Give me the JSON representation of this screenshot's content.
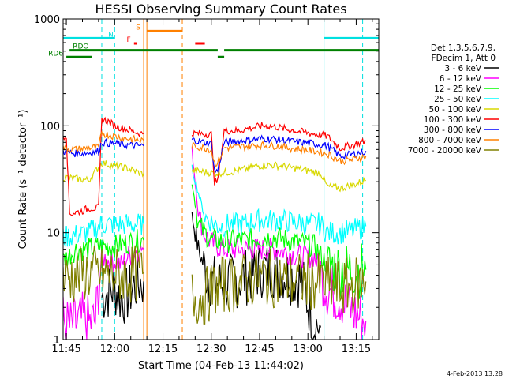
{
  "chart_data": {
    "type": "line",
    "title": "HESSI Observing Summary Count Rates",
    "xlabel": "Start Time (04-Feb-13 11:44:02)",
    "ylabel": "Count Rate (s⁻¹ detector⁻¹)",
    "yscale": "log",
    "ylim": [
      1,
      1000
    ],
    "xlim": [
      "11:44",
      "13:22"
    ],
    "x_ticks": [
      "11:45",
      "12:00",
      "12:15",
      "12:30",
      "12:45",
      "13:00",
      "13:15"
    ],
    "y_ticks": [
      "1",
      "10",
      "100",
      "1000"
    ],
    "footer_date": "4-Feb-2013 13:28",
    "legend": {
      "header": [
        "Det 1,3,5,6,7,9,",
        "FDecim 1, Att 0"
      ],
      "entries": [
        {
          "label": "3 - 6 keV",
          "color": "#000000"
        },
        {
          "label": "6 - 12 keV",
          "color": "#ff00ff"
        },
        {
          "label": "12 - 25 keV",
          "color": "#00ff00"
        },
        {
          "label": "25 - 50 keV",
          "color": "#00ffff"
        },
        {
          "label": "50 - 100 keV",
          "color": "#d8d800"
        },
        {
          "label": "100 - 300 keV",
          "color": "#ff0000"
        },
        {
          "label": "300 - 800 keV",
          "color": "#0000ff"
        },
        {
          "label": "800 - 7000 keV",
          "color": "#ff8000"
        },
        {
          "label": "7000 - 20000 keV",
          "color": "#808000"
        }
      ]
    },
    "flags": [
      {
        "label": "N",
        "color": "#00e0e0",
        "segments": [
          [
            "11:44",
            "12:00"
          ],
          [
            "13:05",
            "13:22"
          ]
        ],
        "level": 660
      },
      {
        "label": "S",
        "color": "#ff8000",
        "segments": [
          [
            "12:10",
            "12:21"
          ]
        ],
        "level": 770
      },
      {
        "label": "F",
        "color": "#ff0000",
        "segments": [
          [
            "12:06",
            "12:07"
          ],
          [
            "12:25",
            "12:28"
          ]
        ],
        "level": 590
      },
      {
        "label": "RDO",
        "color": "#008000",
        "segments": [
          [
            "11:46",
            "12:32"
          ],
          [
            "12:34",
            "13:22"
          ]
        ],
        "level": 510
      },
      {
        "label": "RD6",
        "color": "#008000",
        "segments": [
          [
            "11:45",
            "11:53"
          ],
          [
            "12:32",
            "12:34"
          ]
        ],
        "level": 440
      }
    ],
    "vlines": [
      {
        "x": "11:44",
        "color": "#00e0e0",
        "style": "solid"
      },
      {
        "x": "11:56",
        "color": "#00e0e0",
        "style": "dashed"
      },
      {
        "x": "12:00",
        "color": "#00e0e0",
        "style": "dashed"
      },
      {
        "x": "12:09",
        "color": "#ff8000",
        "style": "solid"
      },
      {
        "x": "12:10",
        "color": "#ff8000",
        "style": "solid"
      },
      {
        "x": "12:21",
        "color": "#ff8000",
        "style": "dashed"
      },
      {
        "x": "13:05",
        "color": "#00e0e0",
        "style": "solid"
      },
      {
        "x": "13:17",
        "color": "#00e0e0",
        "style": "dashed"
      }
    ],
    "series": [
      {
        "name": "3 - 6 keV",
        "color": "#000000",
        "segments": [
          {
            "x": [
              "11:56",
              "11:58",
              "12:00",
              "12:02",
              "12:04",
              "12:06",
              "12:08",
              "12:09"
            ],
            "y": [
              2.5,
              2.8,
              3,
              2.4,
              2.6,
              3.2,
              3.5,
              3.5
            ]
          },
          {
            "x": [
              "12:24",
              "12:26",
              "12:28",
              "12:30",
              "12:32",
              "12:34",
              "12:38",
              "12:42",
              "12:46",
              "12:50",
              "12:54",
              "12:58",
              "13:02",
              "13:04"
            ],
            "y": [
              15,
              7,
              4.5,
              3.5,
              3.3,
              3.3,
              3.6,
              4,
              4.5,
              4.5,
              4,
              3.6,
              1.4,
              1.3
            ]
          }
        ]
      },
      {
        "name": "6 - 12 keV",
        "color": "#ff00ff",
        "segments": [
          {
            "x": [
              "11:44",
              "11:46",
              "11:48",
              "11:50",
              "11:52",
              "11:54",
              "11:56",
              "11:58",
              "12:00",
              "12:02",
              "12:04",
              "12:06",
              "12:08",
              "12:09"
            ],
            "y": [
              1.5,
              1.3,
              1.4,
              1.5,
              1.4,
              1.5,
              6,
              5.5,
              5.4,
              5,
              6,
              6.5,
              7,
              7
            ]
          },
          {
            "x": [
              "12:24",
              "12:26",
              "12:28",
              "12:30",
              "12:32",
              "12:34",
              "12:38",
              "12:42",
              "12:46",
              "12:50",
              "12:54",
              "12:58",
              "13:02",
              "13:06",
              "13:10",
              "13:14",
              "13:18"
            ],
            "y": [
              60,
              15,
              9.5,
              8,
              7.5,
              7,
              7,
              7,
              7,
              7,
              6.5,
              6,
              6,
              3,
              2.5,
              1.8,
              1.5
            ]
          }
        ]
      },
      {
        "name": "12 - 25 keV",
        "color": "#00ff00",
        "segments": [
          {
            "x": [
              "11:44",
              "11:48",
              "11:52",
              "11:56",
              "12:00",
              "12:04",
              "12:08",
              "12:09"
            ],
            "y": [
              5.5,
              7,
              7,
              7.5,
              7.5,
              8,
              8.5,
              8.5
            ]
          },
          {
            "x": [
              "12:24",
              "12:26",
              "12:28",
              "12:30",
              "12:32",
              "12:34",
              "12:38",
              "12:42",
              "12:46",
              "12:50",
              "12:54",
              "12:58",
              "13:02",
              "13:06",
              "13:10",
              "13:14",
              "13:18"
            ],
            "y": [
              30,
              12,
              10,
              8.5,
              8.5,
              8.3,
              8.5,
              8.5,
              9,
              9,
              8.5,
              8,
              7.5,
              5,
              4.5,
              4.5,
              4.5
            ]
          }
        ]
      },
      {
        "name": "25 - 50 keV",
        "color": "#00ffff",
        "segments": [
          {
            "x": [
              "11:44",
              "11:48",
              "11:52",
              "11:56",
              "12:00",
              "12:04",
              "12:08",
              "12:09"
            ],
            "y": [
              9,
              9.5,
              10,
              12,
              12,
              12,
              12,
              12
            ]
          },
          {
            "x": [
              "12:24",
              "12:28",
              "12:32",
              "12:36",
              "12:40",
              "12:44",
              "12:48",
              "12:52",
              "12:56",
              "13:00",
              "13:04",
              "13:06",
              "13:10",
              "13:14",
              "13:18"
            ],
            "y": [
              40,
              14,
              11.5,
              12,
              12,
              13,
              13,
              13,
              12.5,
              12,
              12,
              10,
              10,
              10.5,
              11.5
            ]
          }
        ]
      },
      {
        "name": "50 - 100 keV",
        "color": "#d8d800",
        "segments": [
          {
            "x": [
              "11:44",
              "11:48",
              "11:52",
              "11:56",
              "12:00",
              "12:04",
              "12:08",
              "12:09"
            ],
            "y": [
              33,
              32,
              31,
              45,
              42,
              40,
              36,
              36
            ]
          },
          {
            "x": [
              "12:24",
              "12:28",
              "12:32",
              "12:36",
              "12:40",
              "12:44",
              "12:48",
              "12:52",
              "12:56",
              "13:00",
              "13:04",
              "13:06",
              "13:10",
              "13:14",
              "13:18"
            ],
            "y": [
              38,
              37,
              36,
              37,
              39,
              42,
              43,
              42,
              40,
              38,
              36,
              27,
              26,
              28,
              31
            ]
          }
        ]
      },
      {
        "name": "100 - 300 keV",
        "color": "#ff0000",
        "segments": [
          {
            "x": [
              "11:44",
              "11:45",
              "11:46",
              "11:48",
              "11:50",
              "11:52",
              "11:54",
              "11:55",
              "11:56",
              "11:58",
              "12:00",
              "12:04",
              "12:08",
              "12:09"
            ],
            "y": [
              80,
              82,
              15,
              15.5,
              16,
              17,
              17,
              17,
              115,
              110,
              100,
              92,
              85,
              85
            ]
          },
          {
            "x": [
              "12:24",
              "12:28",
              "12:30",
              "12:31",
              "12:32",
              "12:34",
              "12:38",
              "12:42",
              "12:46",
              "12:50",
              "12:54",
              "12:58",
              "13:02",
              "13:06",
              "13:10",
              "13:14",
              "13:18"
            ],
            "y": [
              85,
              84,
              83,
              30,
              30,
              90,
              90,
              95,
              100,
              98,
              92,
              88,
              84,
              80,
              62,
              66,
              72
            ]
          }
        ]
      },
      {
        "name": "300 - 800 keV",
        "color": "#0000ff",
        "segments": [
          {
            "x": [
              "11:44",
              "11:46",
              "11:48",
              "11:52",
              "11:55",
              "11:56",
              "12:00",
              "12:04",
              "12:08",
              "12:09"
            ],
            "y": [
              58,
              56,
              55,
              56,
              58,
              70,
              68,
              66,
              65,
              65
            ]
          },
          {
            "x": [
              "12:24",
              "12:28",
              "12:30",
              "12:31",
              "12:32",
              "12:34",
              "12:38",
              "12:42",
              "12:46",
              "12:50",
              "12:54",
              "12:58",
              "13:02",
              "13:06",
              "13:10",
              "13:14",
              "13:18"
            ],
            "y": [
              74,
              70,
              68,
              38,
              38,
              70,
              72,
              74,
              76,
              75,
              72,
              70,
              68,
              65,
              52,
              54,
              58
            ]
          }
        ]
      },
      {
        "name": "800 - 7000 keV",
        "color": "#ff8000",
        "segments": [
          {
            "x": [
              "11:44",
              "11:48",
              "11:52",
              "11:55",
              "11:56",
              "12:00",
              "12:04",
              "12:08",
              "12:09"
            ],
            "y": [
              62,
              60,
              62,
              63,
              85,
              80,
              76,
              73,
              73
            ]
          },
          {
            "x": [
              "12:24",
              "12:28",
              "12:30",
              "12:31",
              "12:32",
              "12:34",
              "12:38",
              "12:42",
              "12:46",
              "12:50",
              "12:54",
              "12:58",
              "13:02",
              "13:06",
              "13:10",
              "13:14",
              "13:18"
            ],
            "y": [
              65,
              62,
              60,
              45,
              45,
              62,
              63,
              65,
              66,
              65,
              62,
              60,
              58,
              55,
              47,
              48,
              52
            ]
          }
        ]
      },
      {
        "name": "7000 - 20000 keV",
        "color": "#808000",
        "segments": [
          {
            "x": [
              "11:44",
              "11:48",
              "11:52",
              "11:56",
              "12:00",
              "12:04",
              "12:08",
              "12:09"
            ],
            "y": [
              3.6,
              4,
              4.2,
              4,
              4,
              4,
              4.2,
              4.2
            ]
          },
          {
            "x": [
              "12:24",
              "12:28",
              "12:32",
              "12:36",
              "12:40",
              "12:44",
              "12:48",
              "12:52",
              "12:56",
              "13:00",
              "13:04",
              "13:06",
              "13:10",
              "13:14",
              "13:18"
            ],
            "y": [
              2.5,
              2.5,
              3.2,
              3.3,
              3.5,
              3.8,
              3.8,
              3.6,
              3.5,
              3.5,
              3.4,
              3.2,
              3,
              3.2,
              3.5
            ]
          }
        ]
      }
    ]
  }
}
